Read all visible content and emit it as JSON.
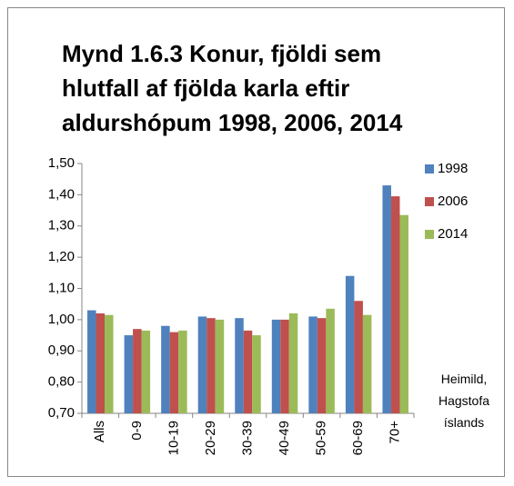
{
  "chart_data": {
    "type": "bar",
    "title": "Mynd 1.6.3 Konur, fjöldi sem hlutfall af fjölda karla eftir aldurshópum 1998, 2006, 2014",
    "annotation": "Heimild, Hagstofa íslands",
    "categories": [
      "Alls",
      "0-9",
      "10-19",
      "20-29",
      "30-39",
      "40-49",
      "50-59",
      "60-69",
      "70+"
    ],
    "series": [
      {
        "name": "1998",
        "color": "#4f81bd",
        "values": [
          1.03,
          0.95,
          0.98,
          1.01,
          1.005,
          1.0,
          1.01,
          1.14,
          1.43
        ]
      },
      {
        "name": "2006",
        "color": "#c0504d",
        "values": [
          1.02,
          0.97,
          0.96,
          1.005,
          0.965,
          1.0,
          1.005,
          1.06,
          1.395
        ]
      },
      {
        "name": "2014",
        "color": "#9bbb59",
        "values": [
          1.015,
          0.965,
          0.965,
          1.0,
          0.95,
          1.02,
          1.035,
          1.015,
          1.335
        ]
      }
    ],
    "ylim": [
      0.7,
      1.5
    ],
    "yticks": [
      {
        "value": 0.7,
        "label": "0,70"
      },
      {
        "value": 0.8,
        "label": "0,80"
      },
      {
        "value": 0.9,
        "label": "0,90"
      },
      {
        "value": 1.0,
        "label": "1,00"
      },
      {
        "value": 1.1,
        "label": "1,10"
      },
      {
        "value": 1.2,
        "label": "1,20"
      },
      {
        "value": 1.3,
        "label": "1,30"
      },
      {
        "value": 1.4,
        "label": "1,40"
      },
      {
        "value": 1.5,
        "label": "1,50"
      }
    ],
    "legend": "right",
    "grid": false
  }
}
